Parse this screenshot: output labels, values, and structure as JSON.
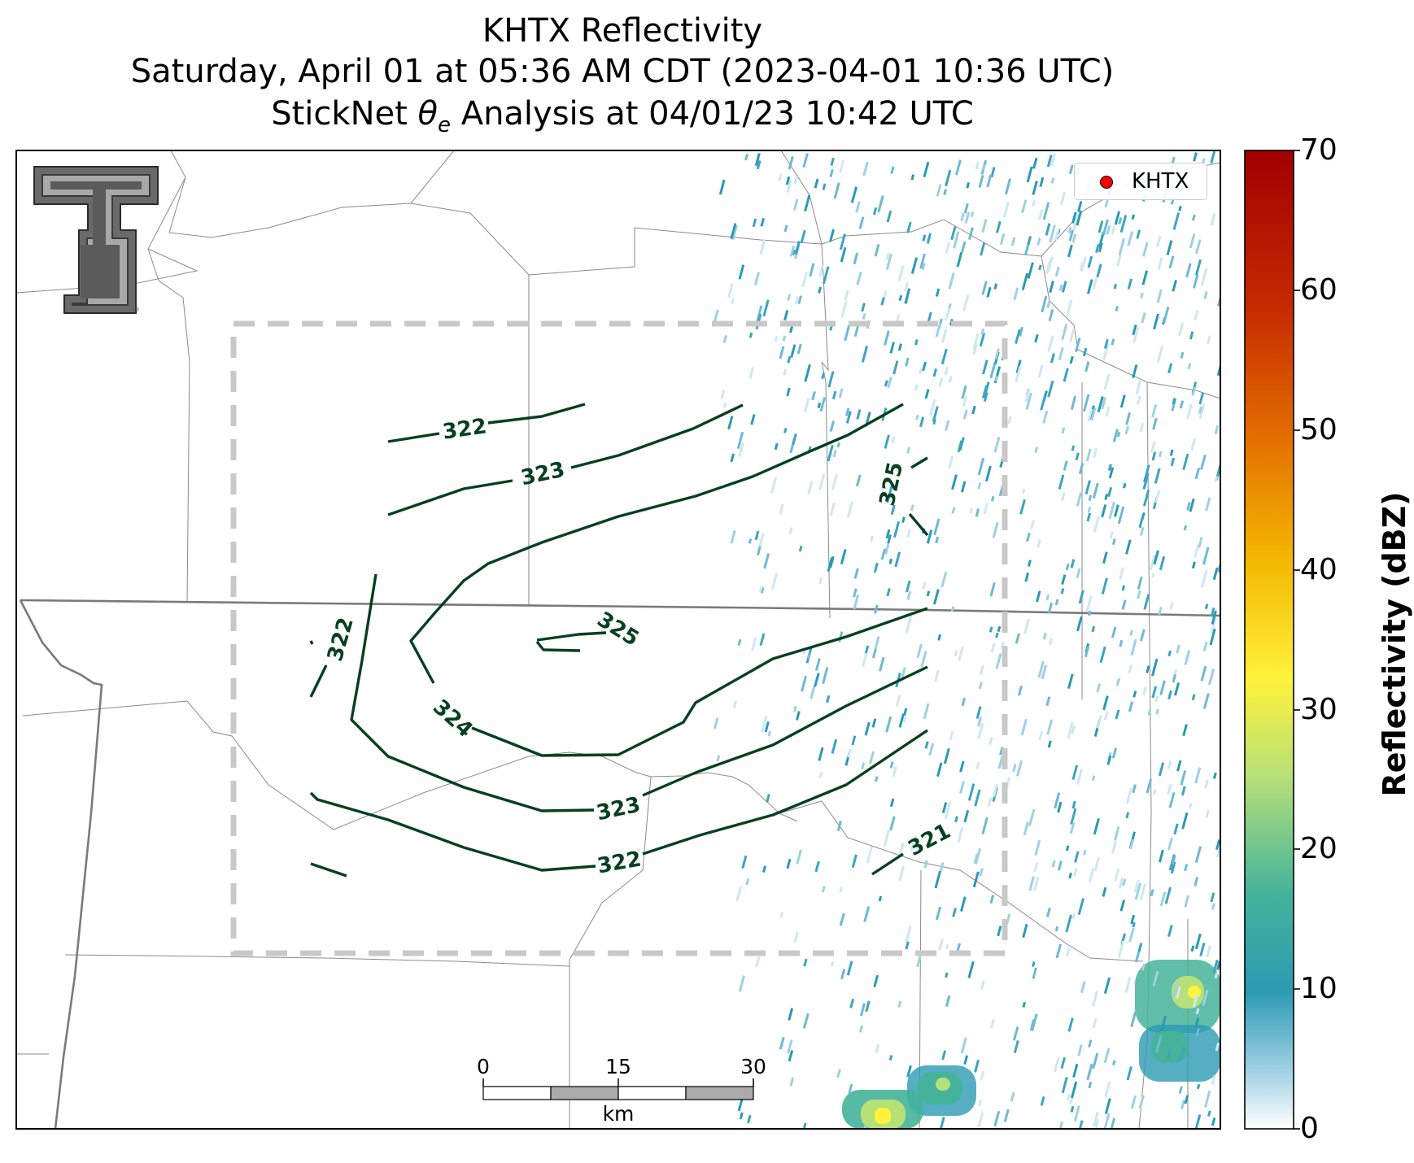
{
  "title": {
    "line1": "KHTX Reflectivity",
    "line2": "Saturday, April 01 at 05:36 AM CDT (2023-04-01 10:36 UTC)",
    "line3_prefix": "StickNet ",
    "line3_symbol": "θ",
    "line3_subscript": "e",
    "line3_suffix": " Analysis at 04/01/23 10:42 UTC"
  },
  "legend": {
    "marker_label": "KHTX",
    "marker_color": "#ff0000"
  },
  "colorbar": {
    "label": "Reflectivity (dBZ)",
    "ticks": [
      "0",
      "10",
      "20",
      "30",
      "40",
      "50",
      "60",
      "70"
    ],
    "range": [
      0,
      70
    ],
    "colors": [
      "#ffffff",
      "#9fd0e4",
      "#2b9ab3",
      "#44b39a",
      "#b6e078",
      "#fff23a",
      "#f4b800",
      "#e57200",
      "#c52a00",
      "#a00000"
    ]
  },
  "scalebar": {
    "ticks": [
      "0",
      "15",
      "30"
    ],
    "unit": "km"
  },
  "contours": {
    "color": "#06401f",
    "labels": [
      "322",
      "323",
      "325",
      "322",
      "325",
      "324",
      "323",
      "322",
      "321"
    ]
  },
  "analysis_box": {
    "style": "dashed",
    "color": "#c8c8c8"
  },
  "logo": {
    "name": "Texas Tech Double T"
  }
}
